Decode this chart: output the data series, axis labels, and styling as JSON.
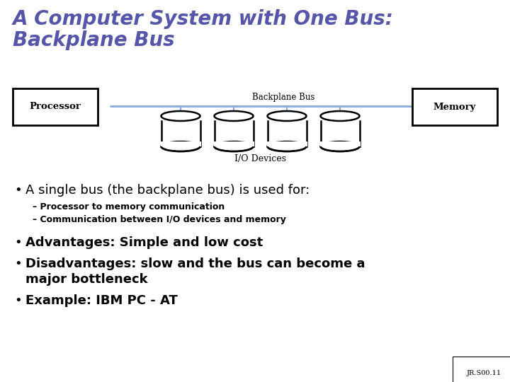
{
  "title_line1": "A Computer System with One Bus:",
  "title_line2": "Backplane Bus",
  "title_color": "#5555aa",
  "bg_color": "#ffffff",
  "bus_label": "Backplane Bus",
  "processor_label": "Processor",
  "memory_label": "Memory",
  "io_label": "I/O Devices",
  "bus_color": "#88aadd",
  "box_color": "#000000",
  "bullet1": "A single bus (the backplane bus) is used for:",
  "sub1": "– Processor to memory communication",
  "sub2": "– Communication between I/O devices and memory",
  "bullet2": "Advantages: Simple and low cost",
  "bullet3a": "Disadvantages: slow and the bus can become a",
  "bullet3b": "major bottleneck",
  "bullet4": "Example: IBM PC - AT",
  "footnote": "JR.S00.11"
}
